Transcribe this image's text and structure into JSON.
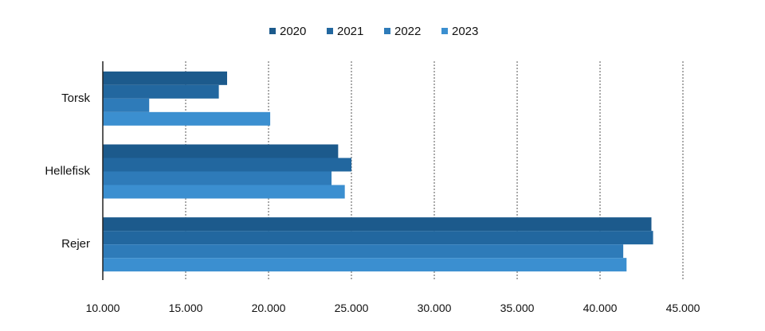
{
  "chart_data": {
    "type": "bar",
    "orientation": "horizontal",
    "categories": [
      "Torsk",
      "Hellefisk",
      "Rejer"
    ],
    "series": [
      {
        "name": "2020",
        "color": "#1c5a8c",
        "values": [
          17500,
          24200,
          43100
        ]
      },
      {
        "name": "2021",
        "color": "#22679f",
        "values": [
          17000,
          25000,
          43200
        ]
      },
      {
        "name": "2022",
        "color": "#2e7bb9",
        "values": [
          12800,
          23800,
          41400
        ]
      },
      {
        "name": "2023",
        "color": "#3b8fd0",
        "values": [
          20100,
          24600,
          41600
        ]
      }
    ],
    "xlim": [
      10000,
      45000
    ],
    "xticks": [
      10000,
      15000,
      20000,
      25000,
      30000,
      35000,
      40000,
      45000
    ],
    "xtick_labels": [
      "10.000",
      "15.000",
      "20.000",
      "25.000",
      "30.000",
      "35.000",
      "40.000",
      "45.000"
    ],
    "grid": "vertical-dashed",
    "legend_position": "top-center",
    "title": "",
    "xlabel": "",
    "ylabel": ""
  }
}
